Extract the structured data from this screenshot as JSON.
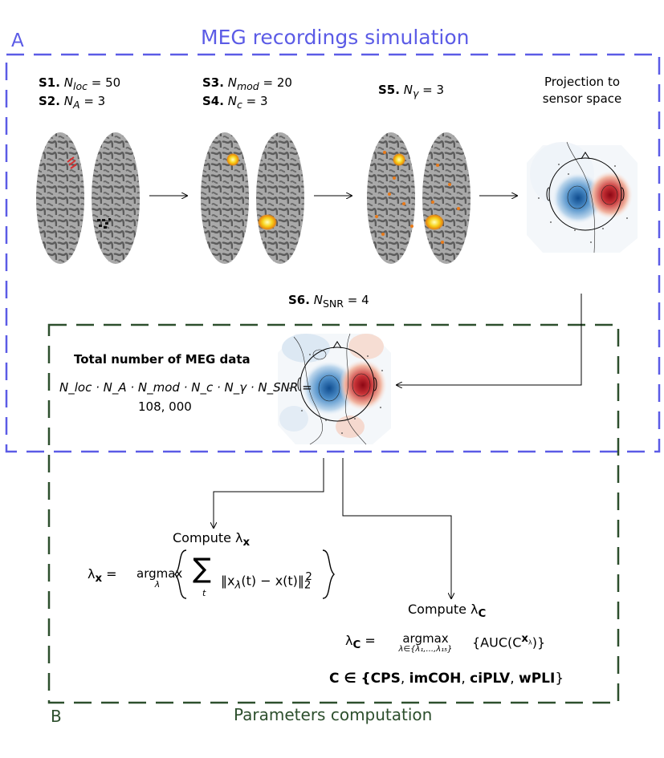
{
  "panel_a": {
    "letter": "A",
    "title": "MEG recordings simulation"
  },
  "panel_b": {
    "letter": "B",
    "title": "Parameters computation"
  },
  "steps": {
    "s1": {
      "label": "S1.",
      "symbol": "N",
      "sub": "loc",
      "value": "= 50"
    },
    "s2": {
      "label": "S2.",
      "symbol": "N",
      "sub": "A",
      "value": "= 3"
    },
    "s3": {
      "label": "S3.",
      "symbol": "N",
      "sub": "mod",
      "value": "= 20"
    },
    "s4": {
      "label": "S4.",
      "symbol": "N",
      "sub": "c",
      "value": "= 3"
    },
    "s5": {
      "label": "S5.",
      "symbol": "N",
      "sub": "γ",
      "value": "= 3"
    },
    "s6": {
      "label": "S6.",
      "symbol": "N",
      "sub": "SNR",
      "value": "= 4"
    }
  },
  "projection": {
    "line1": "Projection to",
    "line2": "sensor space"
  },
  "total": {
    "title": "Total number of MEG data",
    "formula": "N_loc · N_A · N_mod · N_c · N_γ · N_SNR =",
    "value": "108, 000"
  },
  "lambda_x": {
    "heading": "Compute λ",
    "heading_sub": "x",
    "lhs": "λ",
    "lhs_sub": "x",
    "operator": "argmax",
    "operator_under": "λ",
    "sum_under": "t",
    "norm": "‖x",
    "norm_rest": "(t) − x(t)‖",
    "norm_sub": "2",
    "norm_sup": "2"
  },
  "lambda_c": {
    "heading": "Compute λ",
    "heading_sub": "C",
    "lhs": "λ",
    "lhs_sub": "C",
    "operator": "argmax",
    "operator_under": "λ∈{λ₁,...,λ₁₅}",
    "body": "{AUC(C",
    "body_sup": "x",
    "body_sup_sub": "λ",
    "body_end": ")}"
  },
  "metrics": {
    "prefix": "C ∈ {",
    "items": [
      "CPS",
      "imCOH",
      "ciPLV",
      "wPLI"
    ],
    "suffix": "}"
  },
  "colors": {
    "panel_a": "#5b5be6",
    "panel_b": "#2d4f2d",
    "red": "#b0101c",
    "blue": "#1f5fa8"
  },
  "icons": [
    "brain-icon",
    "activation-icon",
    "topomap-icon",
    "arrow-right-icon"
  ]
}
